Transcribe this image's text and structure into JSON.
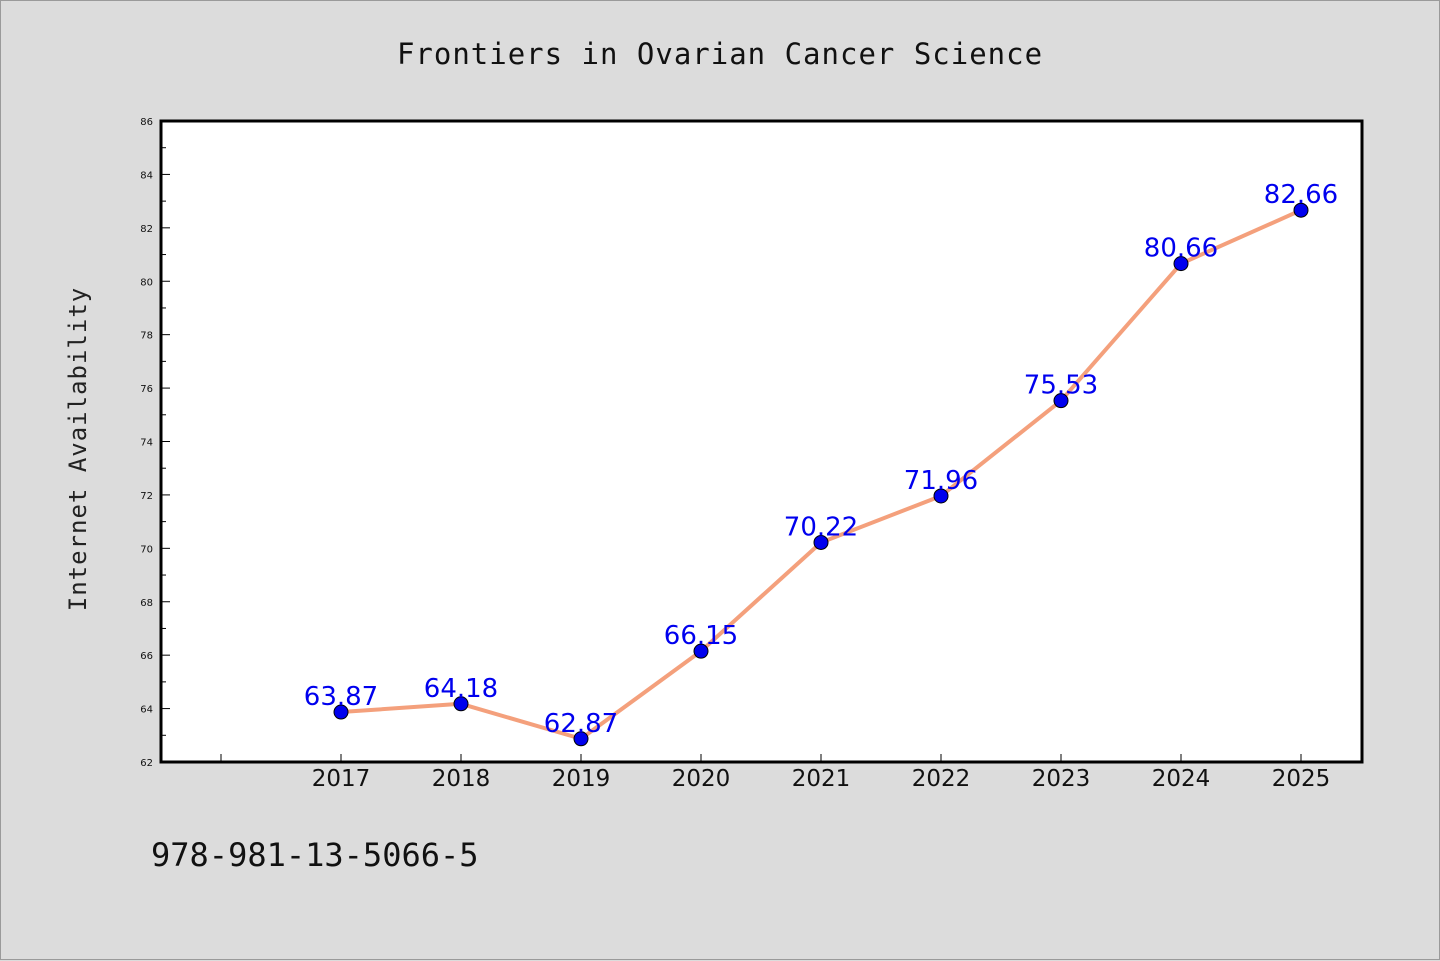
{
  "chart_data": {
    "type": "line",
    "title": "Frontiers in Ovarian Cancer Science",
    "xlabel": "",
    "ylabel": "Internet Availability",
    "categories": [
      "2017",
      "2018",
      "2019",
      "2020",
      "2021",
      "2022",
      "2023",
      "2024",
      "2025"
    ],
    "values": [
      63.87,
      64.18,
      62.87,
      66.15,
      70.22,
      71.96,
      75.53,
      80.66,
      82.66
    ],
    "data_labels": [
      "63.87",
      "64.18",
      "62.87",
      "66.15",
      "70.22",
      "71.96",
      "75.53",
      "80.66",
      "82.66"
    ],
    "ylim": [
      62,
      86
    ],
    "yticks": [
      "62",
      "64",
      "66",
      "68",
      "70",
      "72",
      "74",
      "76",
      "78",
      "80",
      "82",
      "84",
      "86"
    ],
    "grid": false,
    "legend": "none",
    "colors": {
      "line": "#f4a07c",
      "marker": "#0000ee",
      "data_label": "#0000ee",
      "background": "#dcdcdc",
      "plot_area": "#ffffff"
    }
  },
  "footer": {
    "isbn": "978-981-13-5066-5"
  }
}
